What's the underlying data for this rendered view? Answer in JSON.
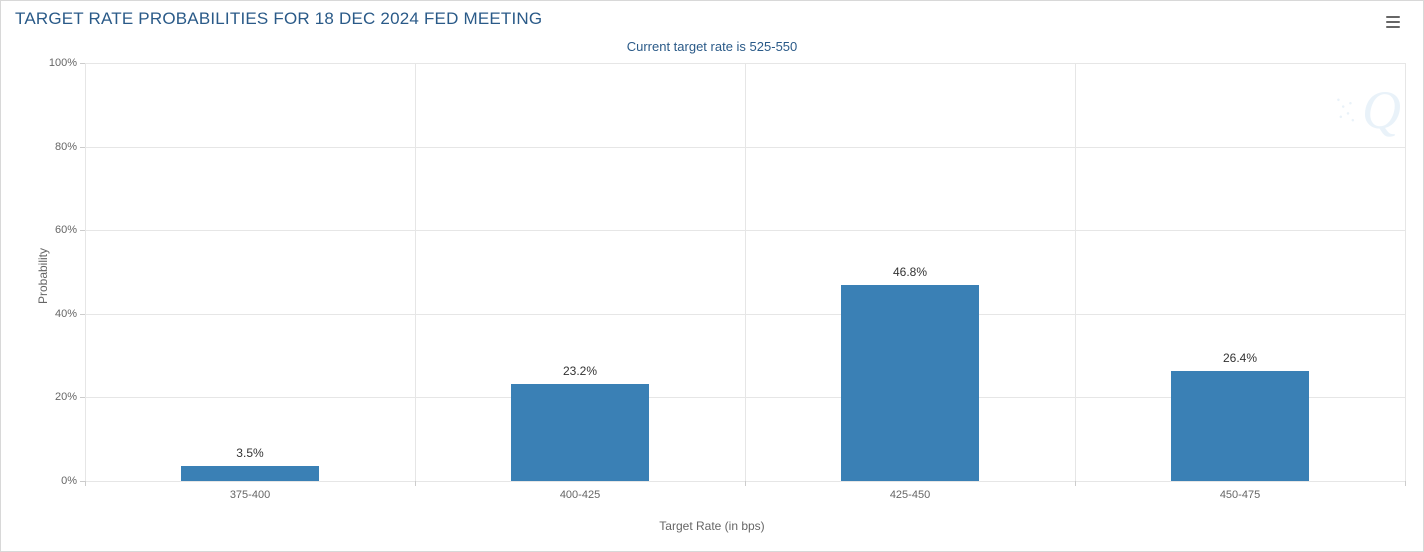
{
  "chart": {
    "type": "bar",
    "title": "TARGET RATE PROBABILITIES FOR 18 DEC 2024 FED MEETING",
    "subtitle": "Current target rate is 525-550",
    "x_axis_title": "Target Rate (in bps)",
    "y_axis_title": "Probability",
    "categories": [
      "375-400",
      "400-425",
      "425-450",
      "450-475"
    ],
    "values": [
      3.5,
      23.2,
      46.8,
      26.4
    ],
    "value_labels": [
      "3.5%",
      "23.2%",
      "46.8%",
      "26.4%"
    ],
    "bar_color": "#3a80b5",
    "bar_width_ratio": 0.42,
    "ylim": [
      0,
      100
    ],
    "ytick_step": 20,
    "ytick_suffix": "%",
    "grid_color": "#e6e6e6",
    "background_color": "#ffffff",
    "border_color": "#d8d8d8",
    "title_color": "#2a5a88",
    "subtitle_color": "#2a5a88",
    "axis_label_color": "#666666",
    "tick_label_color": "#666666",
    "value_label_color": "#333333",
    "title_fontsize": 17,
    "subtitle_fontsize": 13,
    "axis_title_fontsize": 12,
    "tick_label_fontsize": 11,
    "value_label_fontsize": 12,
    "watermark_text": "Q",
    "watermark_color": "rgba(100,160,210,0.14)"
  }
}
